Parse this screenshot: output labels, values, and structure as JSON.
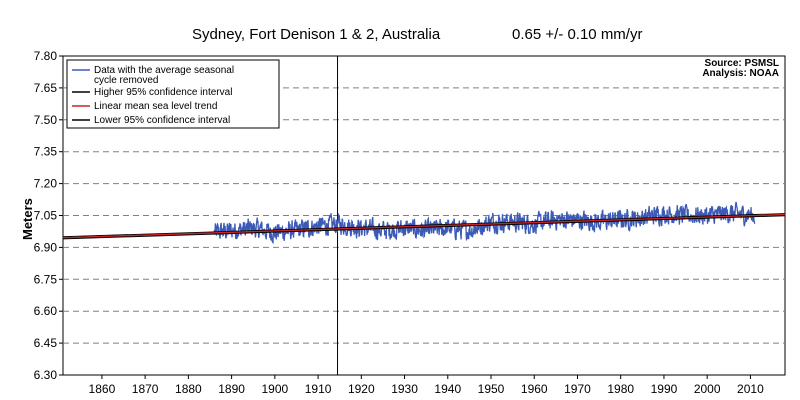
{
  "chart_data": {
    "type": "line",
    "title": "Sydney, Fort Denison 1 & 2, Australia",
    "trend_label": "0.65 +/- 0.10  mm/yr",
    "ylabel": "Meters",
    "xlabel": "",
    "xlim": [
      1851,
      2018
    ],
    "ylim": [
      6.3,
      7.8
    ],
    "yticks": [
      "6.30",
      "6.45",
      "6.60",
      "6.75",
      "6.90",
      "7.05",
      "7.20",
      "7.35",
      "7.50",
      "7.65",
      "7.80"
    ],
    "xticks": [
      "1860",
      "1870",
      "1880",
      "1890",
      "1900",
      "1910",
      "1920",
      "1930",
      "1940",
      "1950",
      "1960",
      "1970",
      "1980",
      "1990",
      "2000",
      "2010"
    ],
    "grid": "horizontal dashed",
    "vertical_marker_year": 1914.5,
    "source_text": "Source: PSMSL",
    "analysis_text": "Analysis: NOAA",
    "legend": {
      "data_line1": "Data with the average seasonal",
      "data_line2": "cycle removed",
      "higher_ci": "Higher 95% confidence interval",
      "trend": "Linear mean sea level trend",
      "lower_ci": "Lower 95% confidence interval"
    },
    "series": [
      {
        "name": "Data with the average seasonal cycle removed",
        "color": "#3b5ab5",
        "x_start": 1886,
        "x_end": 2011,
        "anchor_years": [
          1886,
          1890,
          1895,
          1900,
          1905,
          1910,
          1915,
          1920,
          1925,
          1930,
          1935,
          1940,
          1945,
          1950,
          1955,
          1960,
          1965,
          1970,
          1975,
          1980,
          1985,
          1990,
          1995,
          2000,
          2005,
          2011
        ],
        "anchor_means": [
          6.97,
          6.98,
          6.99,
          6.97,
          6.98,
          7.0,
          7.01,
          6.99,
          6.98,
          6.99,
          6.98,
          6.99,
          6.98,
          7.02,
          7.02,
          7.01,
          7.03,
          7.03,
          7.02,
          7.03,
          7.04,
          7.06,
          7.05,
          7.05,
          7.06,
          7.05
        ],
        "monthly_amplitude": 0.05
      },
      {
        "name": "Higher 95% confidence interval",
        "color": "#000000",
        "x": [
          1851,
          2018
        ],
        "values": [
          6.95,
          7.059
        ]
      },
      {
        "name": "Linear mean sea level trend",
        "color": "#cc2222",
        "x": [
          1851,
          2018
        ],
        "values": [
          6.945,
          7.054
        ]
      },
      {
        "name": "Lower 95% confidence interval",
        "color": "#000000",
        "x": [
          1851,
          2018
        ],
        "values": [
          6.94,
          7.049
        ]
      }
    ]
  }
}
